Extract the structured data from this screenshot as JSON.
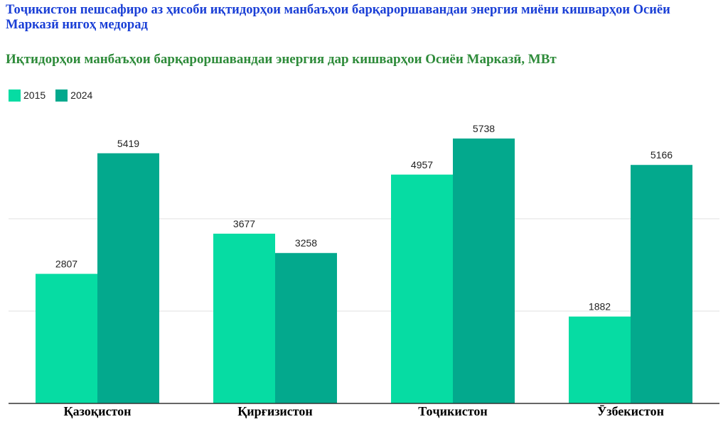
{
  "headline": "Тоҷикистон пешсафиро аз ҳисоби иқтидорҳои манбаъҳои барқароршавандаи энергия миёни кишварҳои Осиёи Марказӣ нигоҳ медорад",
  "colors": {
    "2015": "#06dca3",
    "2024": "#03a98d",
    "title": "#1a3fd6",
    "subtitle": "#2e8b3a",
    "grid": "#e0e0e0"
  },
  "chart_data": {
    "type": "bar",
    "title": "Иқтидорҳои манбаъҳои барқароршавандаи энергия дар кишварҳои Осиёи Марказӣ, МВт",
    "categories": [
      "Қазоқистон",
      "Қирғизистон",
      "Тоҷикистон",
      "Ӯзбекистон"
    ],
    "series": [
      {
        "name": "2015",
        "values": [
          2807,
          3677,
          4957,
          1882
        ]
      },
      {
        "name": "2024",
        "values": [
          5419,
          3258,
          5738,
          5166
        ]
      }
    ],
    "xlabel": "",
    "ylabel": "",
    "ylim": [
      0,
      6000
    ],
    "grid": true,
    "legend_position": "top-left",
    "data_labels": true
  }
}
